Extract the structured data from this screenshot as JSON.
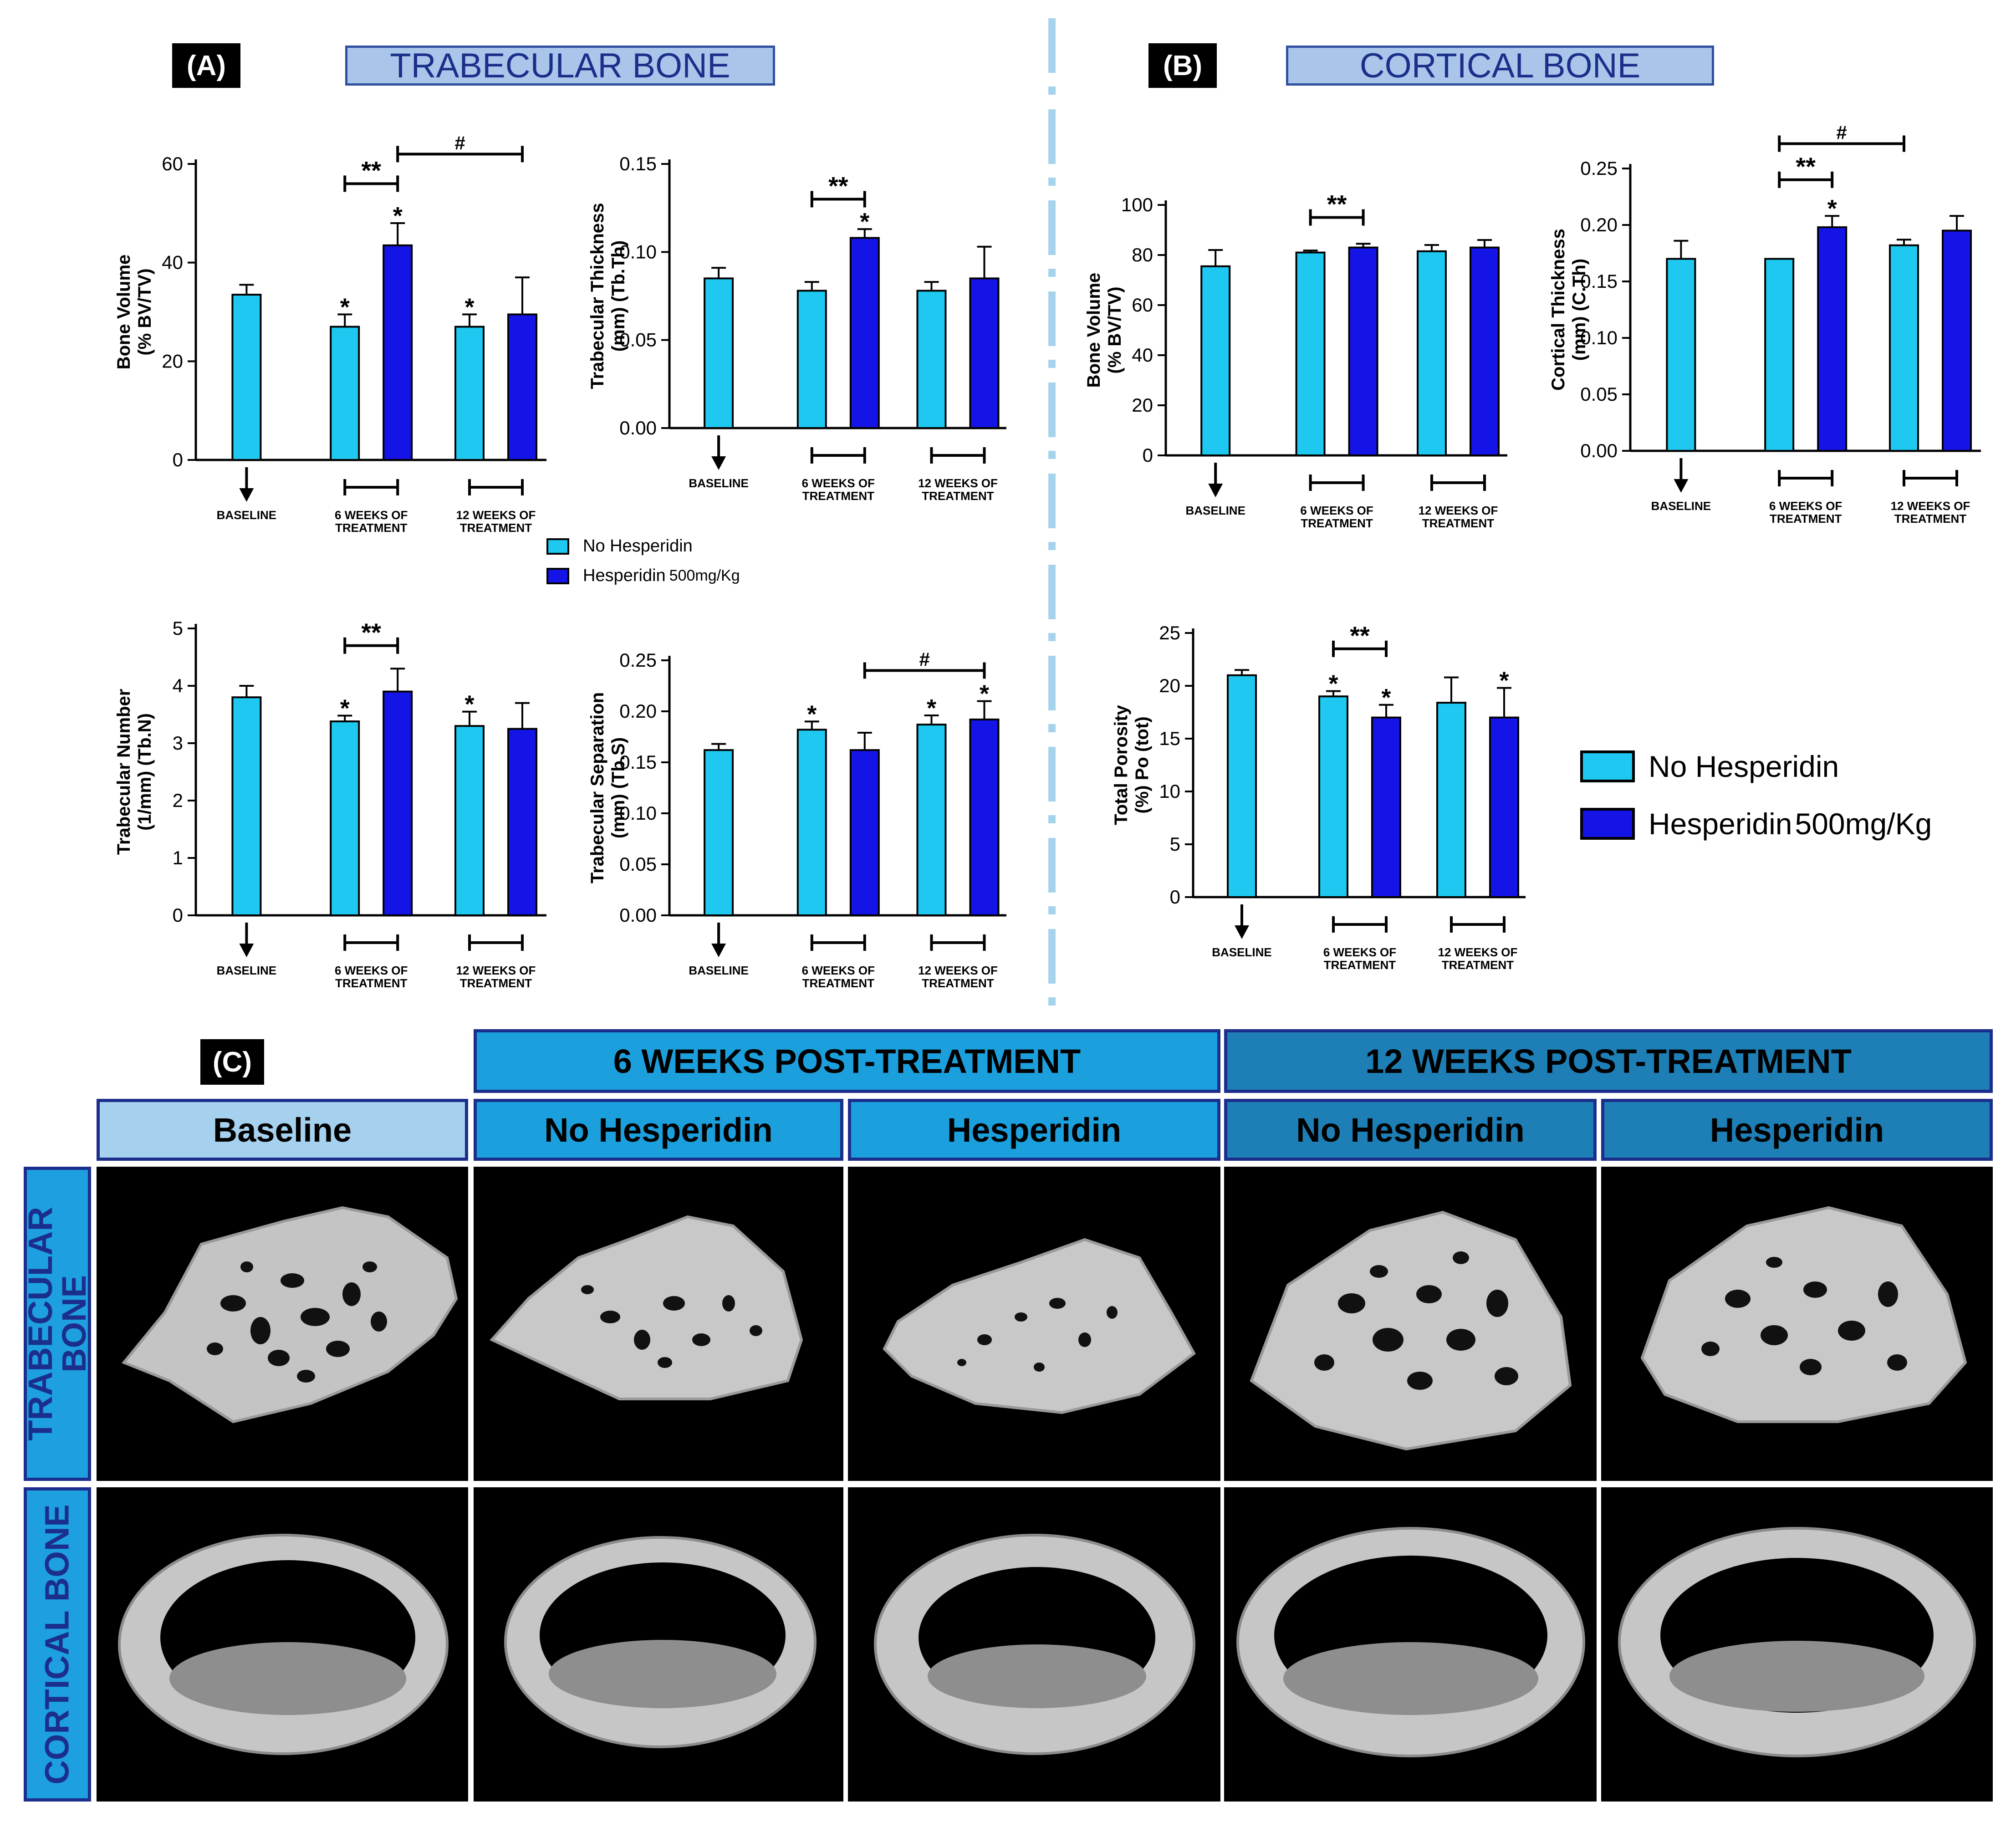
{
  "panel_a": {
    "letter": "(A)",
    "title": "TRABECULAR BONE"
  },
  "panel_b": {
    "letter": "(B)",
    "title": "CORTICAL BONE"
  },
  "legend_small": {
    "no": "No Hesperidin",
    "yes_name": "Hesperidin",
    "yes_dose": "500mg/Kg"
  },
  "legend_large": {
    "no": "No Hesperidin",
    "yes_name": "Hesperidin",
    "yes_dose": "500mg/Kg"
  },
  "colors": {
    "no_hesperidin": "#1ec8f0",
    "hesperidin": "#1414e6"
  },
  "chart_data": [
    {
      "id": "bv_a",
      "type": "bar",
      "ylabel": "Bone Volume (% BV/TV)",
      "ylim": [
        0,
        60
      ],
      "yticks": [
        "0",
        "20",
        "40",
        "60"
      ],
      "groups": [
        {
          "label": [
            "BASELINE"
          ],
          "marker": "arrow",
          "bars": [
            {
              "series": "No Hesperidin",
              "value": 33.5,
              "err": 2,
              "star": ""
            }
          ]
        },
        {
          "label": [
            "6 WEEKS OF",
            "TREATMENT"
          ],
          "marker": "bracket",
          "bars": [
            {
              "series": "No Hesperidin",
              "value": 27,
              "err": 2.5,
              "star": "*"
            },
            {
              "series": "Hesperidin 500mg/Kg",
              "value": 43.5,
              "err": 4.5,
              "star": "*"
            }
          ]
        },
        {
          "label": [
            "12 WEEKS OF",
            "TREATMENT"
          ],
          "marker": "bracket",
          "bars": [
            {
              "series": "No Hesperidin",
              "value": 27,
              "err": 2.5,
              "star": "*"
            },
            {
              "series": "Hesperidin 500mg/Kg",
              "value": 29.5,
              "err": 7.5,
              "star": ""
            }
          ]
        }
      ],
      "sig": [
        {
          "from": [
            1,
            0
          ],
          "to": [
            1,
            1
          ],
          "label": "**",
          "y": 56
        },
        {
          "from": [
            1,
            1
          ],
          "to": [
            2,
            1
          ],
          "label": "#",
          "y": 62
        }
      ]
    },
    {
      "id": "tbth",
      "type": "bar",
      "ylabel": "Trabecular Thickness (mm) (Tb.Th)",
      "ylim": [
        0,
        0.15
      ],
      "yticks": [
        "0.00",
        "0.05",
        "0.10",
        "0.15"
      ],
      "groups": [
        {
          "label": [
            "BASELINE"
          ],
          "marker": "arrow",
          "bars": [
            {
              "series": "No Hesperidin",
              "value": 0.085,
              "err": 0.006,
              "star": ""
            }
          ]
        },
        {
          "label": [
            "6 WEEKS OF",
            "TREATMENT"
          ],
          "marker": "bracket",
          "bars": [
            {
              "series": "No Hesperidin",
              "value": 0.078,
              "err": 0.005,
              "star": ""
            },
            {
              "series": "Hesperidin 500mg/Kg",
              "value": 0.108,
              "err": 0.005,
              "star": "*"
            }
          ]
        },
        {
          "label": [
            "12 WEEKS OF",
            "TREATMENT"
          ],
          "marker": "bracket",
          "bars": [
            {
              "series": "No Hesperidin",
              "value": 0.078,
              "err": 0.005,
              "star": ""
            },
            {
              "series": "Hesperidin 500mg/Kg",
              "value": 0.085,
              "err": 0.018,
              "star": ""
            }
          ]
        }
      ],
      "sig": [
        {
          "from": [
            1,
            0
          ],
          "to": [
            1,
            1
          ],
          "label": "**",
          "y": 0.13
        }
      ]
    },
    {
      "id": "tbn",
      "type": "bar",
      "ylabel": "Trabecular Number (1/mm) (Tb.N)",
      "ylim": [
        0,
        5
      ],
      "yticks": [
        "0",
        "1",
        "2",
        "3",
        "4",
        "5"
      ],
      "groups": [
        {
          "label": [
            "BASELINE"
          ],
          "marker": "arrow",
          "bars": [
            {
              "series": "No Hesperidin",
              "value": 3.8,
              "err": 0.2,
              "star": ""
            }
          ]
        },
        {
          "label": [
            "6 WEEKS OF",
            "TREATMENT"
          ],
          "marker": "bracket",
          "bars": [
            {
              "series": "No Hesperidin",
              "value": 3.38,
              "err": 0.1,
              "star": "*"
            },
            {
              "series": "Hesperidin 500mg/Kg",
              "value": 3.9,
              "err": 0.4,
              "star": ""
            }
          ]
        },
        {
          "label": [
            "12 WEEKS OF",
            "TREATMENT"
          ],
          "marker": "bracket",
          "bars": [
            {
              "series": "No Hesperidin",
              "value": 3.3,
              "err": 0.25,
              "star": "*"
            },
            {
              "series": "Hesperidin 500mg/Kg",
              "value": 3.25,
              "err": 0.45,
              "star": ""
            }
          ]
        }
      ],
      "sig": [
        {
          "from": [
            1,
            0
          ],
          "to": [
            1,
            1
          ],
          "label": "**",
          "y": 4.7
        }
      ]
    },
    {
      "id": "tbs",
      "type": "bar",
      "ylabel": "Trabecular Separation (mm) (Tb.S)",
      "ylim": [
        0,
        0.25
      ],
      "yticks": [
        "0.00",
        "0.05",
        "0.10",
        "0.15",
        "0.20",
        "0.25"
      ],
      "groups": [
        {
          "label": [
            "BASELINE"
          ],
          "marker": "arrow",
          "bars": [
            {
              "series": "No Hesperidin",
              "value": 0.162,
              "err": 0.006,
              "star": ""
            }
          ]
        },
        {
          "label": [
            "6 WEEKS OF",
            "TREATMENT"
          ],
          "marker": "bracket",
          "bars": [
            {
              "series": "No Hesperidin",
              "value": 0.182,
              "err": 0.008,
              "star": "*"
            },
            {
              "series": "Hesperidin 500mg/Kg",
              "value": 0.162,
              "err": 0.017,
              "star": ""
            }
          ]
        },
        {
          "label": [
            "12 WEEKS OF",
            "TREATMENT"
          ],
          "marker": "bracket",
          "bars": [
            {
              "series": "No Hesperidin",
              "value": 0.187,
              "err": 0.009,
              "star": "*"
            },
            {
              "series": "Hesperidin 500mg/Kg",
              "value": 0.192,
              "err": 0.018,
              "star": "*"
            }
          ]
        }
      ],
      "sig": [
        {
          "from": [
            1,
            1
          ],
          "to": [
            2,
            1
          ],
          "label": "#",
          "y": 0.24
        }
      ]
    },
    {
      "id": "bv_b",
      "type": "bar",
      "ylabel": "Bone Volume (% BV/TV)",
      "ylim": [
        0,
        100
      ],
      "yticks": [
        "0",
        "20",
        "40",
        "60",
        "80",
        "100"
      ],
      "groups": [
        {
          "label": [
            "BASELINE"
          ],
          "marker": "arrow",
          "bars": [
            {
              "series": "No Hesperidin",
              "value": 75.5,
              "err": 6.5,
              "star": ""
            }
          ]
        },
        {
          "label": [
            "6 WEEKS OF",
            "TREATMENT"
          ],
          "marker": "bracket",
          "bars": [
            {
              "series": "No Hesperidin",
              "value": 81,
              "err": 0.8,
              "star": ""
            },
            {
              "series": "Hesperidin 500mg/Kg",
              "value": 83,
              "err": 1.5,
              "star": ""
            }
          ]
        },
        {
          "label": [
            "12 WEEKS OF",
            "TREATMENT"
          ],
          "marker": "bracket",
          "bars": [
            {
              "series": "No Hesperidin",
              "value": 81.5,
              "err": 2.5,
              "star": ""
            },
            {
              "series": "Hesperidin 500mg/Kg",
              "value": 83,
              "err": 3,
              "star": ""
            }
          ]
        }
      ],
      "sig": [
        {
          "from": [
            1,
            0
          ],
          "to": [
            1,
            1
          ],
          "label": "**",
          "y": 95
        }
      ]
    },
    {
      "id": "cth",
      "type": "bar",
      "ylabel": "Cortical Thickness (mm) (C.Th)",
      "ylim": [
        0,
        0.25
      ],
      "yticks": [
        "0.00",
        "0.05",
        "0.10",
        "0.15",
        "0.20",
        "0.25"
      ],
      "groups": [
        {
          "label": [
            "BASELINE"
          ],
          "marker": "arrow",
          "bars": [
            {
              "series": "No Hesperidin",
              "value": 0.17,
              "err": 0.016,
              "star": ""
            }
          ]
        },
        {
          "label": [
            "6 WEEKS OF",
            "TREATMENT"
          ],
          "marker": "bracket",
          "bars": [
            {
              "series": "No Hesperidin",
              "value": 0.17,
              "err": 0.0,
              "star": ""
            },
            {
              "series": "Hesperidin 500mg/Kg",
              "value": 0.198,
              "err": 0.01,
              "star": "*"
            }
          ]
        },
        {
          "label": [
            "12 WEEKS OF",
            "TREATMENT"
          ],
          "marker": "bracket",
          "bars": [
            {
              "series": "No Hesperidin",
              "value": 0.182,
              "err": 0.005,
              "star": ""
            },
            {
              "series": "Hesperidin 500mg/Kg",
              "value": 0.195,
              "err": 0.013,
              "star": ""
            }
          ]
        }
      ],
      "sig": [
        {
          "from": [
            1,
            0
          ],
          "to": [
            1,
            1
          ],
          "label": "**",
          "y": 0.24
        },
        {
          "from": [
            1,
            0
          ],
          "to": [
            2,
            0
          ],
          "label": "#",
          "y": 0.272
        }
      ]
    },
    {
      "id": "po",
      "type": "bar",
      "ylabel": "Total Porosity (%) Po (tot)",
      "ylim": [
        0,
        25
      ],
      "yticks": [
        "0",
        "5",
        "10",
        "15",
        "20",
        "25"
      ],
      "groups": [
        {
          "label": [
            "BASELINE"
          ],
          "marker": "arrow",
          "bars": [
            {
              "series": "No Hesperidin",
              "value": 21,
              "err": 0.5,
              "star": ""
            }
          ]
        },
        {
          "label": [
            "6 WEEKS OF",
            "TREATMENT"
          ],
          "marker": "bracket",
          "bars": [
            {
              "series": "No Hesperidin",
              "value": 19,
              "err": 0.5,
              "star": "*"
            },
            {
              "series": "Hesperidin 500mg/Kg",
              "value": 17,
              "err": 1.2,
              "star": "*"
            }
          ]
        },
        {
          "label": [
            "12 WEEKS OF",
            "TREATMENT"
          ],
          "marker": "bracket",
          "bars": [
            {
              "series": "No Hesperidin",
              "value": 18.4,
              "err": 2.4,
              "star": ""
            },
            {
              "series": "Hesperidin 500mg/Kg",
              "value": 17,
              "err": 2.8,
              "star": "*"
            }
          ]
        }
      ],
      "sig": [
        {
          "from": [
            1,
            0
          ],
          "to": [
            1,
            1
          ],
          "label": "**",
          "y": 23.5
        }
      ]
    }
  ],
  "panel_c": {
    "letter": "(C)",
    "period_6": "6 WEEKS POST-TREATMENT",
    "period_12": "12 WEEKS POST-TREATMENT",
    "columns": [
      "Baseline",
      "No Hesperidin",
      "Hesperidin",
      "No Hesperidin",
      "Hesperidin"
    ],
    "row_trabecular_l1": "TRABECULAR",
    "row_trabecular_l2": "BONE",
    "row_cortical": "CORTICAL BONE"
  }
}
